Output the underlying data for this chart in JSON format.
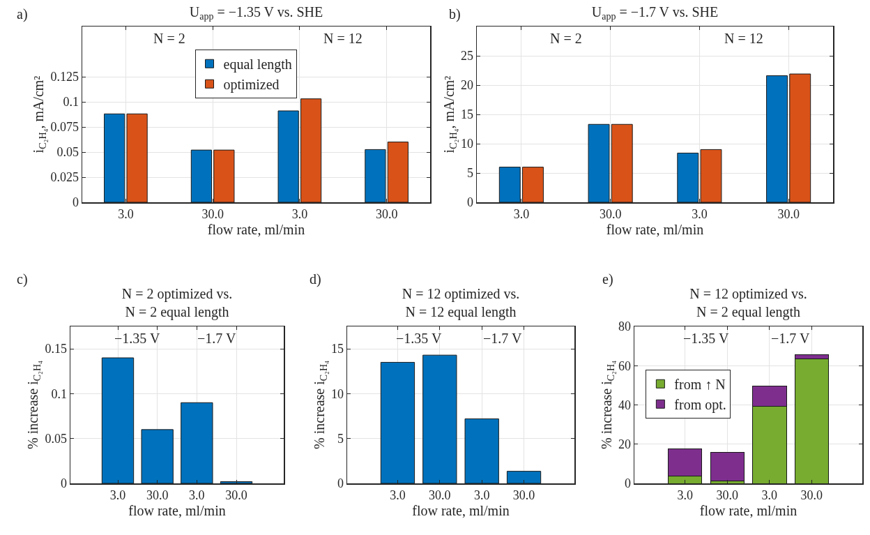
{
  "chart_data": [
    {
      "type": "bar",
      "title": "U$_{app}$ = −1.35 V vs. SHE",
      "xlabel": "flow rate, ml/min",
      "ylabel": "i$_{C₂H₄}$, mA/cm²",
      "annotations": [
        "a)",
        "N = 2",
        "N = 12"
      ],
      "categories": [
        "3.0",
        "30.0",
        "3.0",
        "30.0"
      ],
      "series": [
        {
          "name": "equal length",
          "color": "#0072bd",
          "values": [
            0.088,
            0.052,
            0.091,
            0.0525
          ]
        },
        {
          "name": "optimized",
          "color": "#d95319",
          "values": [
            0.088,
            0.052,
            0.103,
            0.06
          ]
        }
      ],
      "ylim": [
        0,
        0.175
      ],
      "yticks": [
        0,
        0.025,
        0.05,
        0.075,
        0.1,
        0.125
      ],
      "grid": true,
      "legend": "top"
    },
    {
      "type": "bar",
      "title": "U$_{app}$ = −1.7 V vs. SHE",
      "xlabel": "flow rate, ml/min",
      "ylabel": "i$_{C₂H₄}$, mA/cm²",
      "annotations": [
        "b)",
        "N = 2",
        "N = 12"
      ],
      "categories": [
        "3.0",
        "30.0",
        "3.0",
        "30.0"
      ],
      "series": [
        {
          "color": "#0072bd",
          "values": [
            6.0,
            13.3,
            8.4,
            21.6
          ]
        },
        {
          "color": "#d95319",
          "values": [
            6.0,
            13.3,
            9.0,
            21.9
          ]
        }
      ],
      "ylim": [
        0,
        30
      ],
      "yticks": [
        0,
        5,
        10,
        15,
        20,
        25
      ],
      "grid": true
    },
    {
      "type": "bar",
      "title": "N = 2 optimized vs.\nN = 2 equal length",
      "xlabel": "flow rate, ml/min",
      "ylabel": "% increase i$_{C₂H₄}$",
      "annotations": [
        "c)",
        "−1.35 V",
        "−1.7 V"
      ],
      "categories": [
        "3.0",
        "30.0",
        "3.0",
        "30.0"
      ],
      "series": [
        {
          "color": "#0072bd",
          "values": [
            0.14,
            0.06,
            0.09,
            0.002
          ]
        }
      ],
      "ylim": [
        0,
        0.175
      ],
      "yticks": [
        0,
        0.05,
        0.1,
        0.15
      ],
      "grid": true
    },
    {
      "type": "bar",
      "title": "N = 12 optimized vs.\nN = 12 equal length",
      "xlabel": "flow rate, ml/min",
      "ylabel": "% increase i$_{C₂H₄}$",
      "annotations": [
        "d)",
        "−1.35 V",
        "−1.7 V"
      ],
      "categories": [
        "3.0",
        "30.0",
        "3.0",
        "30.0"
      ],
      "series": [
        {
          "color": "#0072bd",
          "values": [
            13.5,
            14.3,
            7.2,
            1.35
          ]
        }
      ],
      "ylim": [
        0,
        17.5
      ],
      "yticks": [
        0,
        5,
        10,
        15
      ],
      "grid": true
    },
    {
      "type": "bar",
      "title": "N = 12 optimized vs.\nN = 2 equal length",
      "xlabel": "flow rate, ml/min",
      "ylabel": "% increase i$_{C₂H₄}$",
      "annotations": [
        "e)",
        "−1.35 V",
        "−1.7 V"
      ],
      "categories": [
        "3.0",
        "30.0",
        "3.0",
        "30.0"
      ],
      "stacked": true,
      "series": [
        {
          "name": "from ↑ N",
          "color": "#77ac30",
          "values": [
            3.6,
            1.1,
            39.3,
            63.4
          ]
        },
        {
          "name": "from opt.",
          "color": "#7e2f8e",
          "values": [
            14.0,
            14.6,
            10.3,
            2.3
          ]
        }
      ],
      "ylim": [
        0,
        80
      ],
      "yticks": [
        0,
        20,
        40,
        60,
        80
      ],
      "grid": true,
      "legend": "left"
    }
  ]
}
